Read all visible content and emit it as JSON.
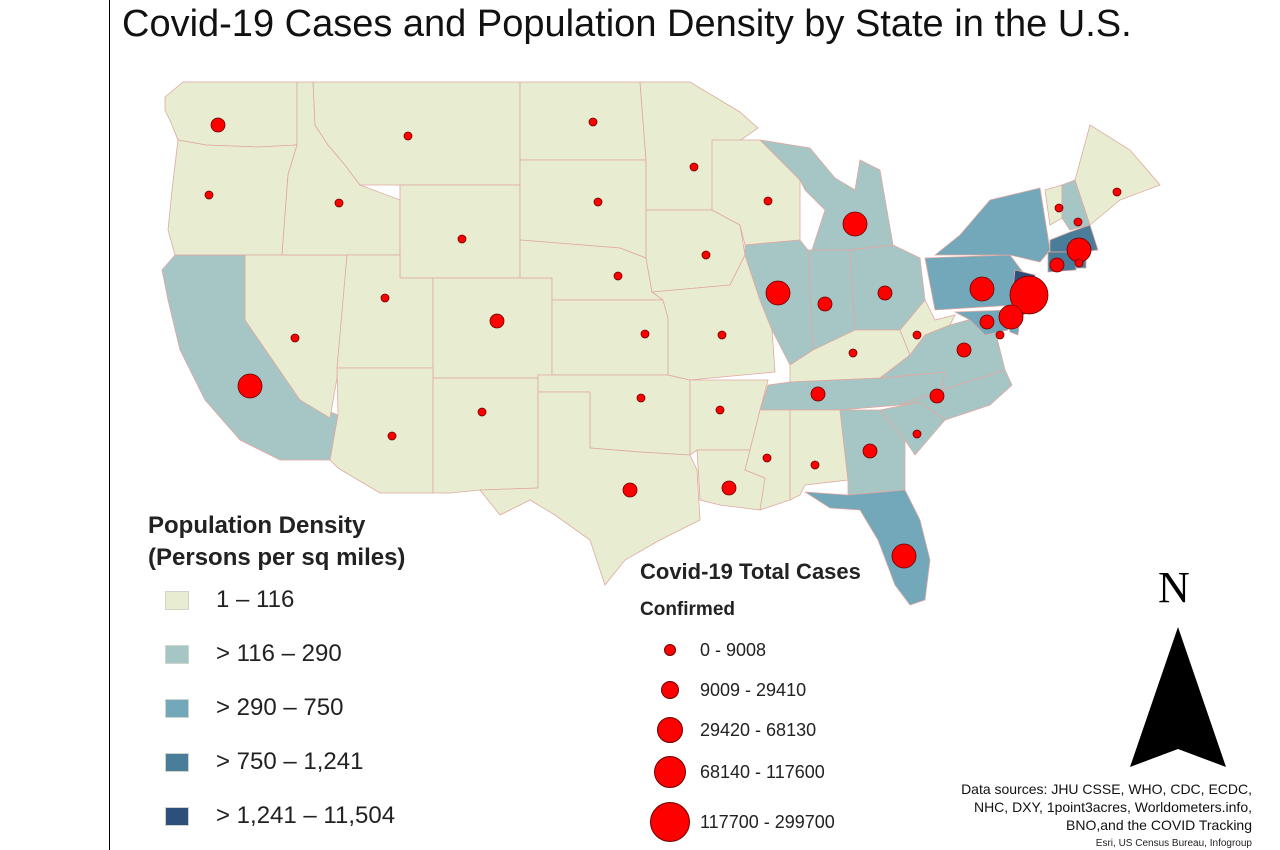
{
  "title": "Covid-19 Cases and Population Density by State in the U.S.",
  "density_legend": {
    "title_line1": "Population Density",
    "title_line2": "(Persons per sq miles)",
    "classes": [
      {
        "label": "1 – 116",
        "color": "#e8edd2"
      },
      {
        "label": "> 116 – 290",
        "color": "#a6c6c6"
      },
      {
        "label": "> 290 – 750",
        "color": "#72a8b9"
      },
      {
        "label": "> 750 – 1,241",
        "color": "#4a7d99"
      },
      {
        "label": "> 1,241 – 11,504",
        "color": "#2c4f7c"
      }
    ]
  },
  "cases_legend": {
    "title": "Covid-19 Total Cases",
    "subtitle": "Confirmed",
    "classes": [
      {
        "label": "0 - 9008",
        "size_class": 1
      },
      {
        "label": "9009 - 29410",
        "size_class": 2
      },
      {
        "label": "29420 - 68130",
        "size_class": 3
      },
      {
        "label": "68140 - 117600",
        "size_class": 4
      },
      {
        "label": "117700 - 299700",
        "size_class": 5
      }
    ],
    "symbol_color": "#ff0000"
  },
  "states": [
    {
      "name": "Washington",
      "density_class": 1,
      "cases_class": 2
    },
    {
      "name": "Oregon",
      "density_class": 1,
      "cases_class": 1
    },
    {
      "name": "California",
      "density_class": 2,
      "cases_class": 3
    },
    {
      "name": "Nevada",
      "density_class": 1,
      "cases_class": 1
    },
    {
      "name": "Idaho",
      "density_class": 1,
      "cases_class": 1
    },
    {
      "name": "Montana",
      "density_class": 1,
      "cases_class": 1
    },
    {
      "name": "Wyoming",
      "density_class": 1,
      "cases_class": 1
    },
    {
      "name": "Utah",
      "density_class": 1,
      "cases_class": 1
    },
    {
      "name": "Colorado",
      "density_class": 1,
      "cases_class": 2
    },
    {
      "name": "Arizona",
      "density_class": 1,
      "cases_class": 1
    },
    {
      "name": "New Mexico",
      "density_class": 1,
      "cases_class": 1
    },
    {
      "name": "North Dakota",
      "density_class": 1,
      "cases_class": 1
    },
    {
      "name": "South Dakota",
      "density_class": 1,
      "cases_class": 1
    },
    {
      "name": "Nebraska",
      "density_class": 1,
      "cases_class": 1
    },
    {
      "name": "Kansas",
      "density_class": 1,
      "cases_class": 1
    },
    {
      "name": "Oklahoma",
      "density_class": 1,
      "cases_class": 1
    },
    {
      "name": "Texas",
      "density_class": 1,
      "cases_class": 2
    },
    {
      "name": "Minnesota",
      "density_class": 1,
      "cases_class": 1
    },
    {
      "name": "Iowa",
      "density_class": 1,
      "cases_class": 1
    },
    {
      "name": "Missouri",
      "density_class": 1,
      "cases_class": 1
    },
    {
      "name": "Arkansas",
      "density_class": 1,
      "cases_class": 1
    },
    {
      "name": "Louisiana",
      "density_class": 1,
      "cases_class": 2
    },
    {
      "name": "Wisconsin",
      "density_class": 1,
      "cases_class": 1
    },
    {
      "name": "Illinois",
      "density_class": 2,
      "cases_class": 3
    },
    {
      "name": "Michigan",
      "density_class": 2,
      "cases_class": 3
    },
    {
      "name": "Indiana",
      "density_class": 2,
      "cases_class": 2
    },
    {
      "name": "Ohio",
      "density_class": 2,
      "cases_class": 2
    },
    {
      "name": "Kentucky",
      "density_class": 1,
      "cases_class": 1
    },
    {
      "name": "Tennessee",
      "density_class": 2,
      "cases_class": 2
    },
    {
      "name": "Mississippi",
      "density_class": 1,
      "cases_class": 1
    },
    {
      "name": "Alabama",
      "density_class": 1,
      "cases_class": 1
    },
    {
      "name": "Georgia",
      "density_class": 2,
      "cases_class": 2
    },
    {
      "name": "Florida",
      "density_class": 3,
      "cases_class": 3
    },
    {
      "name": "South Carolina",
      "density_class": 2,
      "cases_class": 1
    },
    {
      "name": "North Carolina",
      "density_class": 2,
      "cases_class": 2
    },
    {
      "name": "Virginia",
      "density_class": 2,
      "cases_class": 2
    },
    {
      "name": "West Virginia",
      "density_class": 1,
      "cases_class": 1
    },
    {
      "name": "Pennsylvania",
      "density_class": 3,
      "cases_class": 3
    },
    {
      "name": "New York",
      "density_class": 3,
      "cases_class": 5
    },
    {
      "name": "Vermont",
      "density_class": 1,
      "cases_class": 1
    },
    {
      "name": "New Hampshire",
      "density_class": 2,
      "cases_class": 1
    },
    {
      "name": "Maine",
      "density_class": 1,
      "cases_class": 1
    },
    {
      "name": "Massachusetts",
      "density_class": 4,
      "cases_class": 3
    },
    {
      "name": "Connecticut",
      "density_class": 4,
      "cases_class": 2
    },
    {
      "name": "Rhode Island",
      "density_class": 4,
      "cases_class": 1
    },
    {
      "name": "New Jersey",
      "density_class": 5,
      "cases_class": 3
    },
    {
      "name": "Delaware",
      "density_class": 3,
      "cases_class": 1
    },
    {
      "name": "Maryland",
      "density_class": 3,
      "cases_class": 2
    }
  ],
  "north_label": "N",
  "sources_lines": [
    "Data sources: JHU CSSE, WHO, CDC, ECDC,",
    "NHC, DXY, 1point3acres, Worldometers.info,",
    "BNO,and  the COVID Tracking"
  ],
  "credits": "Esri, US Census Bureau, Infogroup"
}
